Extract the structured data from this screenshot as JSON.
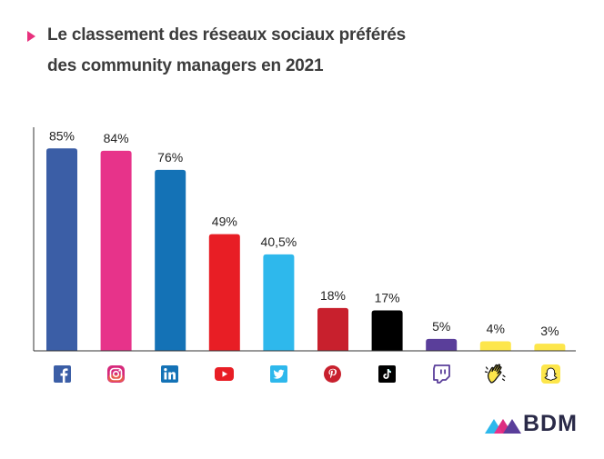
{
  "title": {
    "line1": "Le classement des réseaux sociaux préférés",
    "line2": "des community managers en 2021"
  },
  "brand": {
    "name": "BDM"
  },
  "chart_data": {
    "type": "bar",
    "title": "Le classement des réseaux sociaux préférés des community managers en 2021",
    "categories_icons": [
      "facebook-icon",
      "instagram-icon",
      "linkedin-icon",
      "youtube-icon",
      "twitter-icon",
      "pinterest-icon",
      "tiktok-icon",
      "twitch-icon",
      "clubhouse-icon",
      "snapchat-icon"
    ],
    "values": [
      85,
      84,
      76,
      49,
      40.5,
      18,
      17,
      5,
      4,
      3
    ],
    "value_labels": [
      "85%",
      "84%",
      "76%",
      "49%",
      "40,5%",
      "18%",
      "17%",
      "5%",
      "4%",
      "3%"
    ],
    "colors": [
      "#3b5ea6",
      "#e7338a",
      "#1472b6",
      "#e81e25",
      "#2eb8ec",
      "#c8202d",
      "#000000",
      "#5a3e9a",
      "#fde64b",
      "#fde64b"
    ],
    "ylim": [
      0,
      100
    ],
    "grid": false,
    "legend": "none"
  }
}
